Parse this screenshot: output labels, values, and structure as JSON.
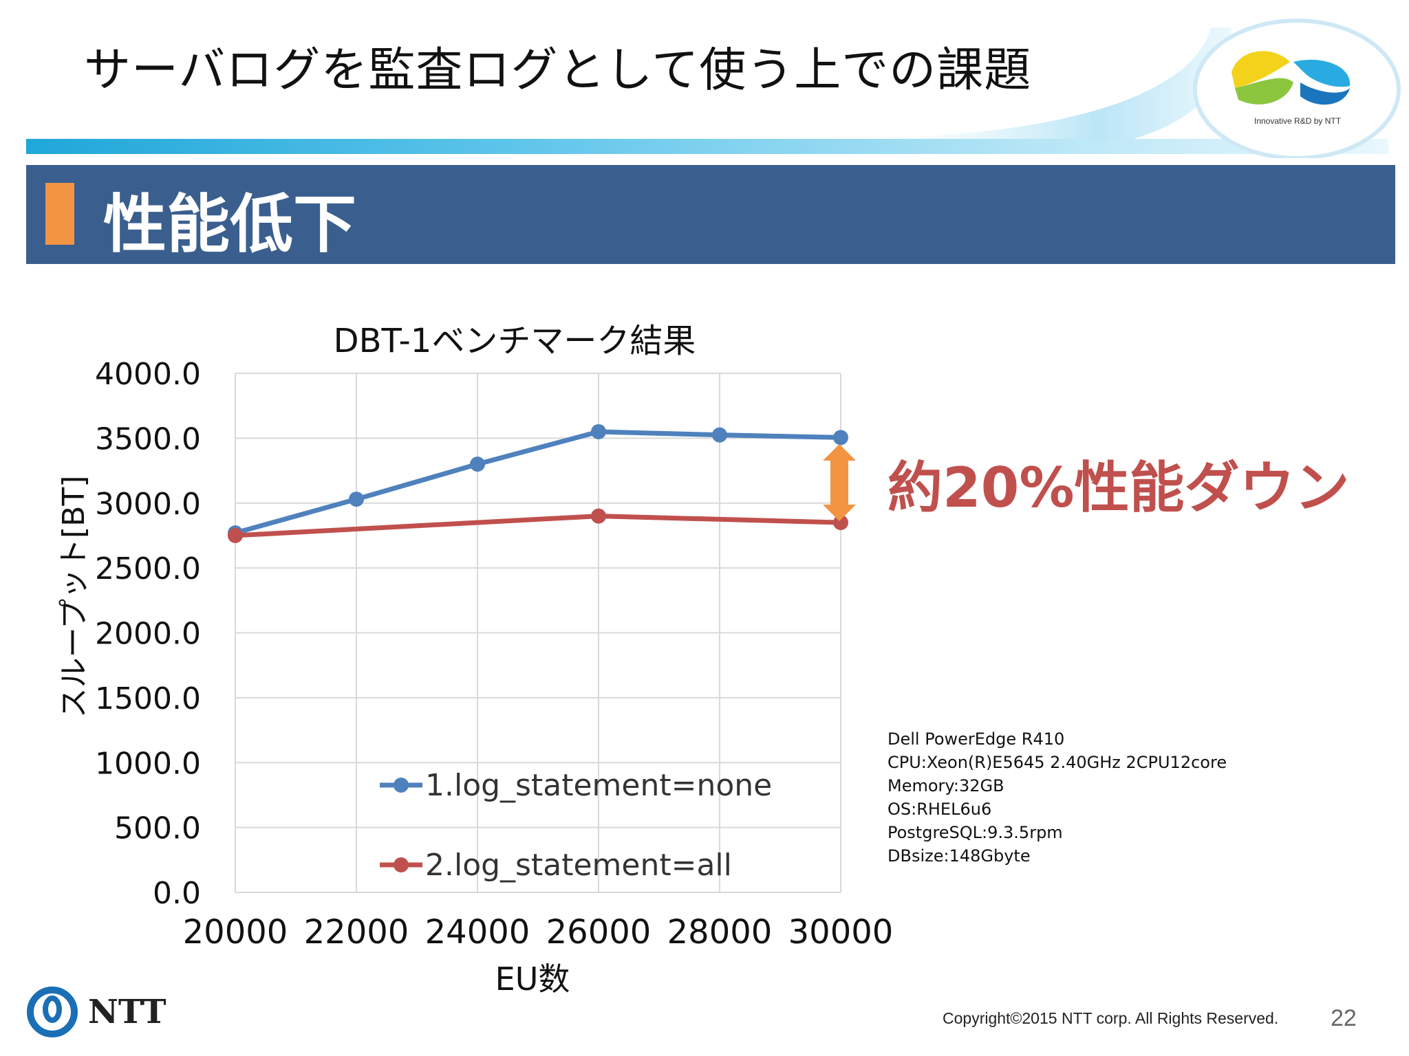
{
  "slide": {
    "title": "サーバログを監査ログとして使う上での課題",
    "section_heading": "性能低下",
    "logo_tagline": "Innovative R&D by NTT",
    "callout": "約20%性能ダウン",
    "specs": [
      "Dell PowerEdge R410",
      "CPU:Xeon(R)E5645 2.40GHz 2CPU12core",
      "Memory:32GB",
      "OS:RHEL6u6",
      "PostgreSQL:9.3.5rpm",
      "DBsize:148Gbyte"
    ],
    "copyright": "Copyright©2015  NTT corp. All Rights Reserved.",
    "page_number": "22",
    "company_logo_text": "NTT"
  },
  "colors": {
    "header_bar": "#3a5f8f",
    "accent_orange": "#f39442",
    "series_blue": "#4f81bd",
    "series_red": "#c0504d",
    "callout_red": "#c0504d"
  },
  "chart_data": {
    "type": "line",
    "title": "DBT-1ベンチマーク結果",
    "xlabel": "EU数",
    "ylabel": "スループット[BT]",
    "ylim": [
      0,
      4000
    ],
    "y_ticks": [
      0,
      500,
      1000,
      1500,
      2000,
      2500,
      3000,
      3500,
      4000
    ],
    "y_tick_labels": [
      "0.0",
      "500.0",
      "1000.0",
      "1500.0",
      "2000.0",
      "2500.0",
      "3000.0",
      "3500.0",
      "4000.0"
    ],
    "xlim": [
      20000,
      30000
    ],
    "x_ticks": [
      20000,
      22000,
      24000,
      26000,
      28000,
      30000
    ],
    "x_tick_labels": [
      "20000",
      "22000",
      "24000",
      "26000",
      "28000",
      "30000"
    ],
    "grid": true,
    "legend_position": "bottom-left",
    "series": [
      {
        "name": "1.log_statement=none",
        "color": "#4f81bd",
        "x": [
          20000,
          22000,
          24000,
          26000,
          28000,
          30000
        ],
        "y": [
          2770,
          3030,
          3300,
          3550,
          3525,
          3505
        ]
      },
      {
        "name": "2.log_statement=all",
        "color": "#c0504d",
        "x": [
          20000,
          26000,
          30000
        ],
        "y": [
          2750,
          2900,
          2850
        ]
      }
    ]
  }
}
